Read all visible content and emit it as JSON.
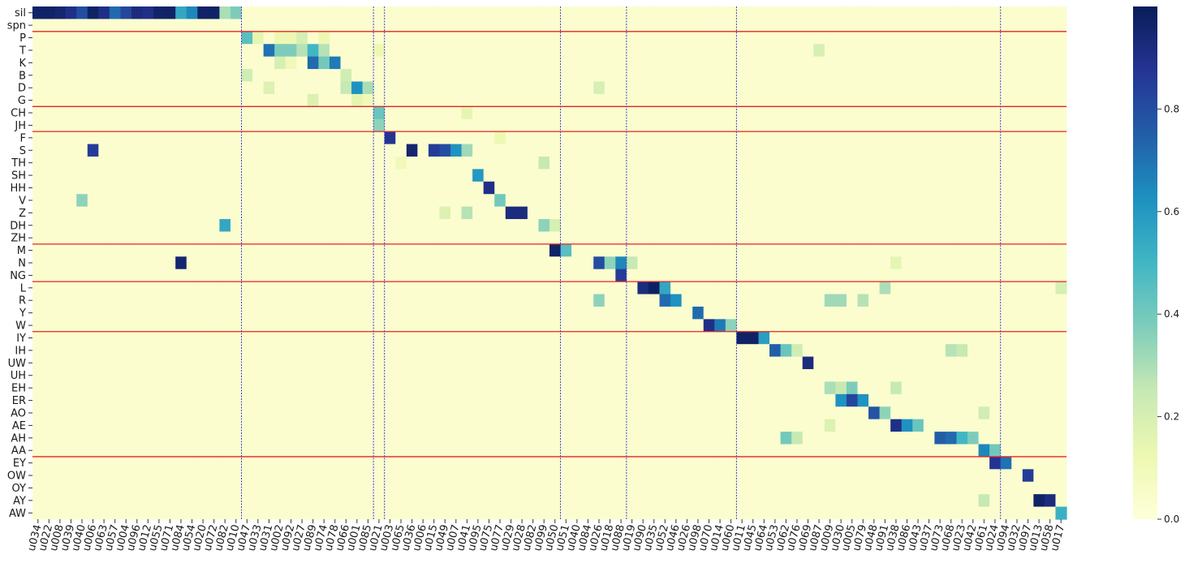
{
  "chart_data": {
    "type": "heatmap",
    "title": "",
    "xlabel": "",
    "ylabel": "",
    "rows": [
      "sil",
      "spn",
      "P",
      "T",
      "K",
      "B",
      "D",
      "G",
      "CH",
      "JH",
      "F",
      "S",
      "TH",
      "SH",
      "HH",
      "V",
      "Z",
      "DH",
      "ZH",
      "M",
      "N",
      "NG",
      "L",
      "R",
      "Y",
      "W",
      "IY",
      "IH",
      "UW",
      "UH",
      "EH",
      "ER",
      "AO",
      "AE",
      "AH",
      "AA",
      "EY",
      "OW",
      "OY",
      "AY",
      "AW"
    ],
    "columns": [
      "u034",
      "u022",
      "u008",
      "u039",
      "u040",
      "u006",
      "u063",
      "u057",
      "u004",
      "u096",
      "u012",
      "u055",
      "u071",
      "u084",
      "u054",
      "u020",
      "u072",
      "u082",
      "u010",
      "u047",
      "u033",
      "u031",
      "u002",
      "u092",
      "u027",
      "u089",
      "u074",
      "u078",
      "u066",
      "u001",
      "u085",
      "u021",
      "u003",
      "u065",
      "u036",
      "u006",
      "u015",
      "u049",
      "u007",
      "u041",
      "u095",
      "u075",
      "u077",
      "u029",
      "u028",
      "u082",
      "u099",
      "u050",
      "u051",
      "u040",
      "u084",
      "u026",
      "u018",
      "u088",
      "u019",
      "u090",
      "u035",
      "u052",
      "u046",
      "u026",
      "u098",
      "u070",
      "u014",
      "u060",
      "u011",
      "u045",
      "u064",
      "u053",
      "u062",
      "u076",
      "u069",
      "u087",
      "u009",
      "u030",
      "u005",
      "u079",
      "u048",
      "u091",
      "u038",
      "u086",
      "u043",
      "u037",
      "u073",
      "u068",
      "u023",
      "u042",
      "u061",
      "u024",
      "u094",
      "u032",
      "u097",
      "u013",
      "u058",
      "u017"
    ],
    "vmin": 0.0,
    "vmax": 1.0,
    "colormap": "YlGnBu",
    "colorbar_ticks": [
      "0.0",
      "0.2",
      "0.4",
      "0.6",
      "0.8"
    ],
    "phone_group_separators_after_row": [
      "spn",
      "G",
      "JH",
      "ZH",
      "NG",
      "W",
      "AA"
    ],
    "cluster_separators_after_column": [
      "u010",
      "u085",
      "u021",
      "u050",
      "u088",
      "u060",
      "u024"
    ],
    "background_value": 0.03,
    "cells": [
      [
        "sil",
        "u034",
        0.97
      ],
      [
        "sil",
        "u022",
        0.97
      ],
      [
        "sil",
        "u008",
        0.95
      ],
      [
        "sil",
        "u039",
        0.9
      ],
      [
        "sil",
        "u040",
        0.8
      ],
      [
        "sil",
        "u006",
        0.97
      ],
      [
        "sil",
        "u063",
        0.9
      ],
      [
        "sil",
        "u057",
        0.72
      ],
      [
        "sil",
        "u004",
        0.82
      ],
      [
        "sil",
        "u096",
        0.92
      ],
      [
        "sil",
        "u012",
        0.9
      ],
      [
        "sil",
        "u055",
        0.96
      ],
      [
        "sil",
        "u071",
        0.97
      ],
      [
        "sil",
        "u084",
        0.55
      ],
      [
        "sil",
        "u054",
        0.65
      ],
      [
        "sil",
        "u020",
        0.97
      ],
      [
        "sil",
        "u072",
        0.97
      ],
      [
        "sil",
        "u082",
        0.3
      ],
      [
        "sil",
        "u010",
        0.38
      ],
      [
        "P",
        "u047",
        0.45
      ],
      [
        "P",
        "u033",
        0.15
      ],
      [
        "P",
        "u002",
        0.12
      ],
      [
        "P",
        "u092",
        0.12
      ],
      [
        "P",
        "u027",
        0.2
      ],
      [
        "P",
        "u074",
        0.12
      ],
      [
        "T",
        "u031",
        0.7
      ],
      [
        "T",
        "u002",
        0.38
      ],
      [
        "T",
        "u092",
        0.38
      ],
      [
        "T",
        "u027",
        0.28
      ],
      [
        "T",
        "u089",
        0.5
      ],
      [
        "T",
        "u074",
        0.28
      ],
      [
        "T",
        "u021",
        0.12
      ],
      [
        "T",
        "u087",
        0.2
      ],
      [
        "K",
        "u002",
        0.2
      ],
      [
        "K",
        "u092",
        0.1
      ],
      [
        "K",
        "u089",
        0.72
      ],
      [
        "K",
        "u074",
        0.4
      ],
      [
        "K",
        "u078",
        0.68
      ],
      [
        "B",
        "u047",
        0.22
      ],
      [
        "B",
        "u066",
        0.22
      ],
      [
        "D",
        "u031",
        0.18
      ],
      [
        "D",
        "u066",
        0.25
      ],
      [
        "D",
        "u001",
        0.62
      ],
      [
        "D",
        "u085",
        0.3
      ],
      [
        "D",
        "u026",
        0.2
      ],
      [
        "G",
        "u089",
        0.18
      ],
      [
        "G",
        "u001",
        0.15
      ],
      [
        "G",
        "u085",
        0.1
      ],
      [
        "CH",
        "u021",
        0.42
      ],
      [
        "CH",
        "u041",
        0.15
      ],
      [
        "JH",
        "u021",
        0.35
      ],
      [
        "F",
        "u003",
        0.88
      ],
      [
        "F",
        "u077",
        0.12
      ],
      [
        "S",
        "u036",
        0.95
      ],
      [
        "S",
        "u006",
        0.85
      ],
      [
        "S",
        "u015",
        0.85
      ],
      [
        "S",
        "u049",
        0.8
      ],
      [
        "S",
        "u007",
        0.62
      ],
      [
        "S",
        "u041",
        0.32
      ],
      [
        "TH",
        "u099",
        0.25
      ],
      [
        "TH",
        "u065",
        0.1
      ],
      [
        "SH",
        "u095",
        0.6
      ],
      [
        "HH",
        "u075",
        0.9
      ],
      [
        "V",
        "u077",
        0.4
      ],
      [
        "V",
        "u040",
        0.35
      ],
      [
        "Z",
        "u029",
        0.92
      ],
      [
        "Z",
        "u028",
        0.92
      ],
      [
        "Z",
        "u049",
        0.18
      ],
      [
        "Z",
        "u041",
        0.28
      ],
      [
        "DH",
        "u082",
        0.55
      ],
      [
        "DH",
        "u099",
        0.35
      ],
      [
        "DH",
        "u050",
        0.2
      ],
      [
        "M",
        "u050",
        0.97
      ],
      [
        "M",
        "u051",
        0.45
      ],
      [
        "N",
        "u084",
        0.95
      ],
      [
        "N",
        "u026",
        0.8
      ],
      [
        "N",
        "u018",
        0.35
      ],
      [
        "N",
        "u088",
        0.65
      ],
      [
        "N",
        "u019",
        0.25
      ],
      [
        "N",
        "u038",
        0.15
      ],
      [
        "NG",
        "u088",
        0.85
      ],
      [
        "L",
        "u090",
        0.92
      ],
      [
        "L",
        "u035",
        0.98
      ],
      [
        "L",
        "u052",
        0.55
      ],
      [
        "L",
        "u091",
        0.3
      ],
      [
        "L",
        "u017",
        0.2
      ],
      [
        "R",
        "u052",
        0.72
      ],
      [
        "R",
        "u046",
        0.62
      ],
      [
        "R",
        "u026",
        0.35
      ],
      [
        "R",
        "u009",
        0.32
      ],
      [
        "R",
        "u030",
        0.32
      ],
      [
        "R",
        "u079",
        0.28
      ],
      [
        "Y",
        "u098",
        0.72
      ],
      [
        "W",
        "u070",
        0.9
      ],
      [
        "W",
        "u014",
        0.68
      ],
      [
        "W",
        "u060",
        0.35
      ],
      [
        "IY",
        "u011",
        0.97
      ],
      [
        "IY",
        "u045",
        0.97
      ],
      [
        "IY",
        "u064",
        0.58
      ],
      [
        "IH",
        "u053",
        0.75
      ],
      [
        "IH",
        "u062",
        0.42
      ],
      [
        "IH",
        "u076",
        0.22
      ],
      [
        "IH",
        "u068",
        0.28
      ],
      [
        "IH",
        "u023",
        0.25
      ],
      [
        "UW",
        "u069",
        0.92
      ],
      [
        "EH",
        "u009",
        0.3
      ],
      [
        "EH",
        "u030",
        0.25
      ],
      [
        "EH",
        "u005",
        0.38
      ],
      [
        "EH",
        "u038",
        0.25
      ],
      [
        "ER",
        "u030",
        0.62
      ],
      [
        "ER",
        "u005",
        0.82
      ],
      [
        "ER",
        "u079",
        0.62
      ],
      [
        "AO",
        "u048",
        0.78
      ],
      [
        "AO",
        "u091",
        0.35
      ],
      [
        "AO",
        "u061",
        0.22
      ],
      [
        "AE",
        "u038",
        0.9
      ],
      [
        "AE",
        "u086",
        0.62
      ],
      [
        "AE",
        "u043",
        0.42
      ],
      [
        "AE",
        "u009",
        0.18
      ],
      [
        "AH",
        "u073",
        0.75
      ],
      [
        "AH",
        "u068",
        0.72
      ],
      [
        "AH",
        "u023",
        0.5
      ],
      [
        "AH",
        "u042",
        0.38
      ],
      [
        "AH",
        "u062",
        0.4
      ],
      [
        "AH",
        "u076",
        0.25
      ],
      [
        "AA",
        "u061",
        0.65
      ],
      [
        "AA",
        "u024",
        0.4
      ],
      [
        "EY",
        "u024",
        0.88
      ],
      [
        "EY",
        "u094",
        0.7
      ],
      [
        "OW",
        "u097",
        0.85
      ],
      [
        "AY",
        "u013",
        0.97
      ],
      [
        "AY",
        "u058",
        0.92
      ],
      [
        "AY",
        "u061",
        0.25
      ],
      [
        "AW",
        "u017",
        0.52
      ]
    ]
  }
}
